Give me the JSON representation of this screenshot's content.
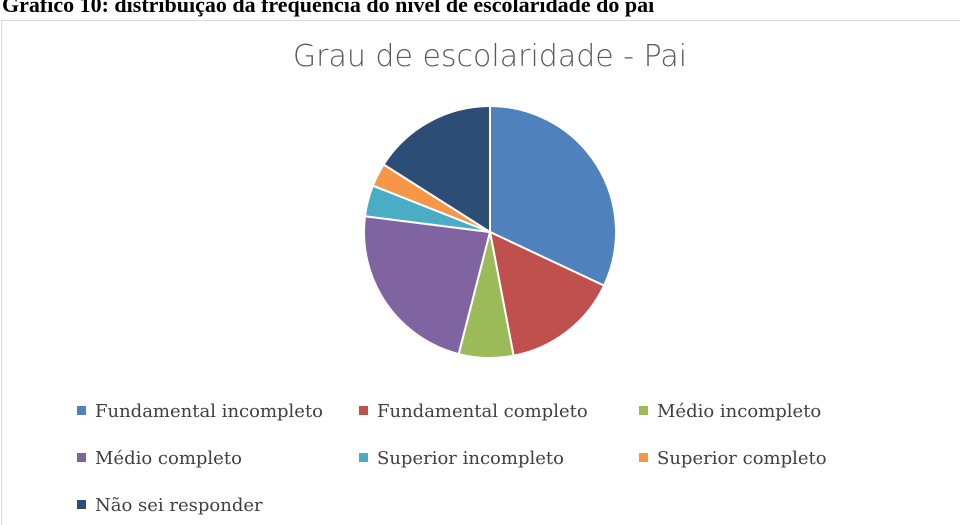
{
  "heading": "Gráfico 10: distribuição da frequência do nível de escolaridade do pai",
  "chart_data": {
    "type": "pie",
    "title": "Grau de escolaridade - Pai",
    "categories": [
      "Fundamental incompleto",
      "Fundamental completo",
      "Médio incompleto",
      "Médio completo",
      "Superior incompleto",
      "Superior completo",
      "Não sei responder"
    ],
    "values": [
      32,
      15,
      7,
      23,
      4,
      3,
      16
    ],
    "colors": [
      "#4f81bd",
      "#c0504d",
      "#9bbb59",
      "#8064a2",
      "#4bacc6",
      "#f79646",
      "#2c4d75"
    ],
    "legend": "bottom"
  }
}
